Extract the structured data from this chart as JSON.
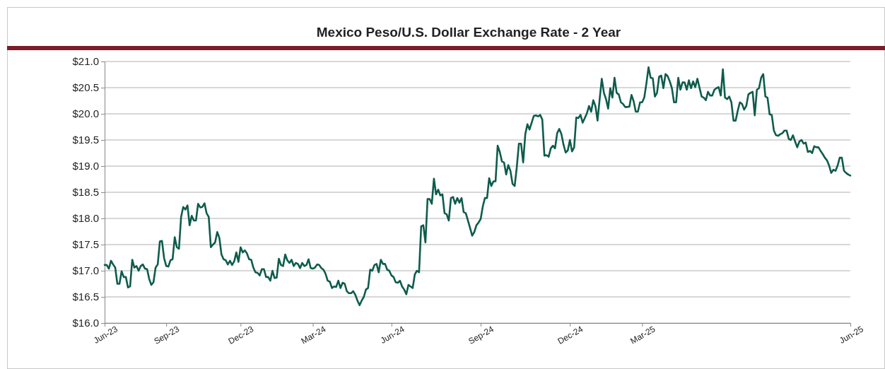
{
  "chart_data": {
    "type": "line",
    "title": "Mexico Peso/U.S. Dollar Exchange Rate - 2 Year",
    "categories": [
      "Jun-23",
      null,
      null,
      null,
      null,
      null,
      null,
      null,
      null,
      null,
      null,
      null,
      null,
      null,
      null,
      null,
      null,
      null,
      null,
      null,
      null,
      null,
      null,
      null,
      null,
      null,
      null,
      null,
      null,
      "Sep-23",
      null,
      null,
      null,
      null,
      null,
      null,
      null,
      null,
      null,
      null,
      null,
      null,
      null,
      null,
      null,
      null,
      null,
      null,
      null,
      null,
      null,
      null,
      null,
      null,
      null,
      null,
      null,
      null,
      null,
      null,
      null,
      null,
      null,
      null,
      "Dec-23",
      null,
      null,
      null,
      null,
      null,
      null,
      null,
      null,
      null,
      null,
      null,
      null,
      null,
      null,
      null,
      null,
      null,
      null,
      null,
      null,
      null,
      null,
      null,
      null,
      null,
      null,
      null,
      null,
      null,
      null,
      null,
      null,
      null,
      "Mar-24",
      null,
      null,
      null,
      null,
      null,
      null,
      null,
      null,
      null,
      null,
      null,
      null,
      null,
      null,
      null,
      null,
      null,
      null,
      null,
      null,
      null,
      null,
      null,
      null,
      null,
      null,
      null,
      null,
      null,
      null,
      null,
      null,
      null,
      null,
      null,
      null,
      "Jun-24",
      null,
      null,
      null,
      null,
      null,
      null,
      null,
      null,
      null,
      null,
      null,
      null,
      null,
      null,
      null,
      null,
      null,
      null,
      null,
      null,
      null,
      null,
      null,
      null,
      null,
      null,
      null,
      null,
      null,
      null,
      null,
      null,
      null,
      null,
      null,
      null,
      null,
      null,
      null,
      null,
      null,
      "Sep-24",
      null,
      null,
      null,
      null,
      null,
      null,
      null,
      null,
      null,
      null,
      null,
      null,
      null,
      null,
      null,
      null,
      null,
      null,
      null,
      null,
      null,
      null,
      null,
      null,
      null,
      null,
      null,
      null,
      null,
      null,
      null,
      null,
      null,
      null,
      null,
      null,
      null,
      null,
      null,
      null,
      null,
      "Dec-24",
      null,
      null,
      null,
      null,
      null,
      null,
      null,
      null,
      null,
      null,
      null,
      null,
      null,
      null,
      null,
      null,
      null,
      null,
      null,
      null,
      null,
      null,
      null,
      null,
      null,
      null,
      null,
      null,
      null,
      null,
      null,
      null,
      null,
      "Mar-25",
      null,
      null,
      null,
      null,
      null,
      null,
      null,
      null,
      null,
      null,
      null,
      null,
      null,
      null,
      null,
      null,
      null,
      null,
      null,
      null,
      null,
      null,
      null,
      null,
      null,
      null,
      null,
      null,
      null,
      null,
      null,
      null,
      null,
      null,
      null,
      null,
      null,
      null,
      null,
      null,
      null,
      null,
      null,
      null,
      null,
      null,
      null,
      null,
      null,
      null,
      null,
      null,
      null,
      null,
      null,
      null,
      null,
      null,
      null,
      null,
      null,
      null,
      null,
      null,
      null,
      null,
      null,
      null,
      null,
      null,
      null,
      null,
      null,
      null,
      null,
      null,
      null,
      null,
      null,
      null,
      null,
      null,
      null,
      null,
      null,
      null,
      null,
      null,
      null,
      null,
      null,
      null,
      null,
      null,
      null,
      null,
      null,
      "Jun-25"
    ],
    "ylim": [
      16,
      21
    ],
    "yticks": [
      {
        "value": 16,
        "label": "$16.0"
      },
      {
        "value": 16.5,
        "label": "$16.5"
      },
      {
        "value": 17,
        "label": "$17.0"
      },
      {
        "value": 17.5,
        "label": "$17.5"
      },
      {
        "value": 18,
        "label": "$18.0"
      },
      {
        "value": 18.5,
        "label": "$18.5"
      },
      {
        "value": 19,
        "label": "$19.0"
      },
      {
        "value": 19.5,
        "label": "$19.5"
      },
      {
        "value": 20,
        "label": "$20.0"
      },
      {
        "value": 20.5,
        "label": "$20.5"
      },
      {
        "value": 21,
        "label": "$21.0"
      }
    ],
    "grid": "y",
    "marker": "none",
    "line_style": "solid",
    "series": [
      {
        "color": "#0e5c4c",
        "values": [
          17.11,
          17.11,
          17.04,
          17.19,
          17.12,
          17.06,
          16.75,
          16.75,
          16.99,
          16.88,
          16.88,
          16.68,
          16.7,
          17.21,
          17.06,
          17.09,
          17,
          17.09,
          17.12,
          17.04,
          17.03,
          16.84,
          16.73,
          16.78,
          17.06,
          17.12,
          17.56,
          17.57,
          17.24,
          17.09,
          17.08,
          17.2,
          17.22,
          17.64,
          17.45,
          17.42,
          18.03,
          18.22,
          18.17,
          18.25,
          17.87,
          18.05,
          17.96,
          17.96,
          18.28,
          18.21,
          18.22,
          18.29,
          18.1,
          18.03,
          17.45,
          17.5,
          17.54,
          17.74,
          17.63,
          17.31,
          17.22,
          17.2,
          17.12,
          17.19,
          17.11,
          17.18,
          17.35,
          17.17,
          17.45,
          17.35,
          17.39,
          17.33,
          17.22,
          17.21,
          17.06,
          16.97,
          16.96,
          16.91,
          17.03,
          17.03,
          16.88,
          16.88,
          16.81,
          17,
          16.86,
          16.87,
          17.23,
          17.11,
          17.09,
          17.31,
          17.2,
          17.15,
          17.21,
          17.09,
          17.15,
          17.13,
          17.05,
          17.15,
          17.09,
          17.11,
          17.22,
          17.05,
          17.04,
          17.06,
          17.12,
          17.11,
          17.05,
          17.02,
          16.94,
          16.81,
          16.79,
          16.67,
          16.7,
          16.69,
          16.81,
          16.67,
          16.77,
          16.75,
          16.61,
          16.57,
          16.57,
          16.61,
          16.54,
          16.43,
          16.34,
          16.43,
          16.5,
          16.64,
          16.67,
          17.02,
          17,
          17.11,
          17.13,
          16.97,
          17.21,
          17.13,
          17.13,
          17.02,
          17,
          16.91,
          16.88,
          16.78,
          16.77,
          16.81,
          16.7,
          16.64,
          16.55,
          16.73,
          16.7,
          16.67,
          16.93,
          17,
          16.97,
          17.85,
          17.87,
          17.54,
          18.37,
          18.37,
          18.28,
          18.76,
          18.46,
          18.55,
          18.44,
          18.46,
          18.1,
          18.08,
          17.96,
          18.39,
          18.41,
          18.28,
          18.39,
          18.3,
          18.39,
          18.12,
          18.1,
          17.96,
          17.82,
          17.67,
          17.74,
          17.87,
          17.92,
          17.99,
          18.23,
          18.39,
          18.39,
          18.77,
          18.62,
          18.71,
          18.71,
          19.39,
          19.27,
          19.09,
          19.07,
          18.84,
          19.02,
          18.91,
          18.66,
          18.62,
          18.98,
          19.43,
          19.43,
          19.07,
          19.61,
          19.8,
          19.7,
          19.83,
          19.96,
          19.97,
          19.95,
          19.98,
          19.89,
          19.2,
          19.21,
          19.18,
          19.34,
          19.39,
          19.34,
          19.63,
          19.71,
          19.61,
          19.41,
          19.26,
          19.3,
          19.5,
          19.28,
          19.36,
          19.93,
          19.92,
          19.98,
          19.83,
          19.92,
          20.01,
          20.15,
          20.04,
          20.26,
          20.15,
          19.87,
          20.28,
          20.67,
          20.4,
          20.28,
          20.1,
          20.49,
          20.31,
          20.69,
          20.4,
          20.37,
          20.22,
          20.19,
          20.13,
          20.13,
          20.14,
          20.36,
          20.24,
          20.04,
          20.04,
          20.22,
          20.22,
          20.31,
          20.58,
          20.89,
          20.69,
          20.68,
          20.33,
          20.4,
          20.71,
          20.73,
          20.49,
          20.76,
          20.72,
          20.62,
          20.49,
          20.22,
          20.22,
          20.69,
          20.46,
          20.6,
          20.6,
          20.46,
          20.64,
          20.49,
          20.62,
          20.51,
          20.67,
          20.5,
          20.33,
          20.31,
          20.26,
          20.42,
          20.35,
          20.35,
          20.46,
          20.49,
          20.51,
          20.35,
          20.85,
          20.31,
          20.28,
          20.33,
          20.22,
          19.87,
          19.87,
          20.06,
          20.22,
          20.19,
          20.08,
          20.15,
          20.37,
          20.4,
          20.42,
          19.97,
          20.46,
          20.49,
          20.69,
          20.76,
          20.33,
          20.31,
          19.99,
          19.98,
          19.68,
          19.59,
          19.58,
          19.61,
          19.63,
          19.68,
          19.68,
          19.52,
          19.5,
          19.59,
          19.47,
          19.36,
          19.47,
          19.5,
          19.43,
          19.45,
          19.27,
          19.29,
          19.25,
          19.38,
          19.36,
          19.36,
          19.29,
          19.23,
          19.16,
          19.11,
          19.01,
          18.87,
          18.93,
          18.91,
          19.01,
          19.16,
          19.16,
          18.91,
          18.87,
          18.84,
          18.82
        ]
      }
    ]
  }
}
